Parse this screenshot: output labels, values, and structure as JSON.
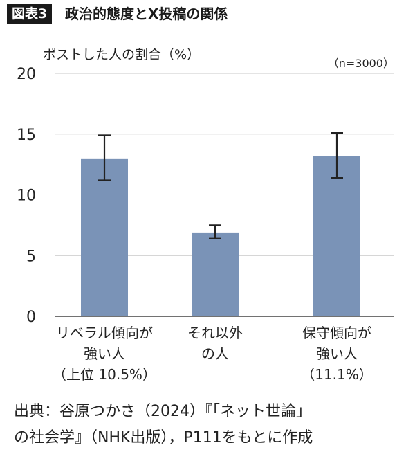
{
  "header": {
    "figure_label": "図表3",
    "title": "政治的態度とX投稿の関係"
  },
  "chart_data": {
    "type": "bar",
    "ylabel": "ポストした人の割合（%）",
    "sample_note": "（n=3000）",
    "ylim": [
      0,
      20
    ],
    "yticks": [
      "0",
      "5",
      "10",
      "15",
      "20"
    ],
    "grid": true,
    "categories": [
      [
        "リベラル傾向が",
        "強い人",
        "（上位 10.5%）"
      ],
      [
        "それ以外",
        "の人"
      ],
      [
        "保守傾向が",
        "強い人",
        "（11.1%）"
      ]
    ],
    "values": [
      13.0,
      6.9,
      13.2
    ],
    "error_low": [
      11.2,
      6.4,
      11.4
    ],
    "error_high": [
      14.9,
      7.5,
      15.1
    ],
    "bar_color": "#7a93b7",
    "grid_color": "#c8c8c8"
  },
  "source": {
    "line1": "出典：谷原つかさ（2024）『「ネット世論」",
    "line2": "の社会学』（NHK出版），P111をもとに作成"
  }
}
